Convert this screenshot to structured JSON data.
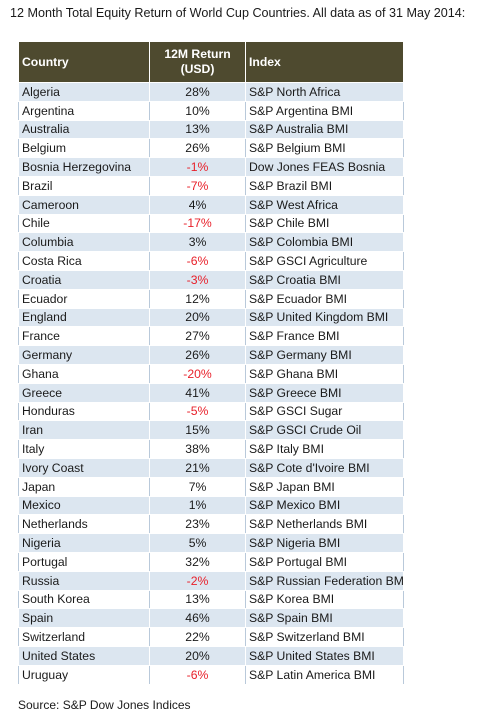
{
  "title": "12 Month Total Equity Return of World Cup Countries. All data as of 31 May 2014:",
  "source": "Source: S&P Dow Jones Indices",
  "colors": {
    "header_bg": "#4e4a2f",
    "row_band": "#dce6f0",
    "negative": "#e8202a"
  },
  "chart_data": {
    "type": "table",
    "columns": [
      "Country",
      "12M Return (USD)",
      "Index"
    ],
    "rows": [
      {
        "country": "Algeria",
        "return": "28%",
        "value": 28,
        "index": "S&P North Africa"
      },
      {
        "country": "Argentina",
        "return": "10%",
        "value": 10,
        "index": "S&P Argentina BMI"
      },
      {
        "country": "Australia",
        "return": "13%",
        "value": 13,
        "index": "S&P Australia BMI"
      },
      {
        "country": "Belgium",
        "return": "26%",
        "value": 26,
        "index": "S&P Belgium BMI"
      },
      {
        "country": "Bosnia Herzegovina",
        "return": "-1%",
        "value": -1,
        "index": "Dow Jones FEAS Bosnia"
      },
      {
        "country": "Brazil",
        "return": "-7%",
        "value": -7,
        "index": "S&P Brazil BMI"
      },
      {
        "country": "Cameroon",
        "return": "4%",
        "value": 4,
        "index": "S&P West Africa"
      },
      {
        "country": "Chile",
        "return": "-17%",
        "value": -17,
        "index": "S&P Chile BMI"
      },
      {
        "country": "Columbia",
        "return": "3%",
        "value": 3,
        "index": "S&P Colombia BMI"
      },
      {
        "country": "Costa Rica",
        "return": "-6%",
        "value": -6,
        "index": "S&P GSCI Agriculture"
      },
      {
        "country": "Croatia",
        "return": "-3%",
        "value": -3,
        "index": "S&P Croatia BMI"
      },
      {
        "country": "Ecuador",
        "return": "12%",
        "value": 12,
        "index": "S&P Ecuador BMI"
      },
      {
        "country": "England",
        "return": "20%",
        "value": 20,
        "index": "S&P United Kingdom BMI"
      },
      {
        "country": "France",
        "return": "27%",
        "value": 27,
        "index": "S&P France BMI"
      },
      {
        "country": "Germany",
        "return": "26%",
        "value": 26,
        "index": "S&P Germany BMI"
      },
      {
        "country": "Ghana",
        "return": "-20%",
        "value": -20,
        "index": "S&P Ghana BMI"
      },
      {
        "country": "Greece",
        "return": "41%",
        "value": 41,
        "index": "S&P Greece BMI"
      },
      {
        "country": "Honduras",
        "return": "-5%",
        "value": -5,
        "index": "S&P GSCI Sugar"
      },
      {
        "country": "Iran",
        "return": "15%",
        "value": 15,
        "index": "S&P GSCI Crude Oil"
      },
      {
        "country": "Italy",
        "return": "38%",
        "value": 38,
        "index": "S&P Italy BMI"
      },
      {
        "country": "Ivory Coast",
        "return": "21%",
        "value": 21,
        "index": "S&P Cote d'Ivoire BMI"
      },
      {
        "country": "Japan",
        "return": "7%",
        "value": 7,
        "index": "S&P Japan BMI"
      },
      {
        "country": "Mexico",
        "return": "1%",
        "value": 1,
        "index": "S&P Mexico BMI"
      },
      {
        "country": "Netherlands",
        "return": "23%",
        "value": 23,
        "index": "S&P Netherlands BMI"
      },
      {
        "country": "Nigeria",
        "return": "5%",
        "value": 5,
        "index": "S&P Nigeria BMI"
      },
      {
        "country": "Portugal",
        "return": "32%",
        "value": 32,
        "index": "S&P Portugal BMI"
      },
      {
        "country": "Russia",
        "return": "-2%",
        "value": -2,
        "index": "S&P Russian Federation BMI"
      },
      {
        "country": "South Korea",
        "return": "13%",
        "value": 13,
        "index": "S&P Korea BMI"
      },
      {
        "country": "Spain",
        "return": "46%",
        "value": 46,
        "index": "S&P Spain BMI"
      },
      {
        "country": "Switzerland",
        "return": "22%",
        "value": 22,
        "index": "S&P Switzerland BMI"
      },
      {
        "country": "United States",
        "return": "20%",
        "value": 20,
        "index": "S&P United States BMI"
      },
      {
        "country": "Uruguay",
        "return": "-6%",
        "value": -6,
        "index": "S&P Latin America BMI"
      }
    ]
  }
}
